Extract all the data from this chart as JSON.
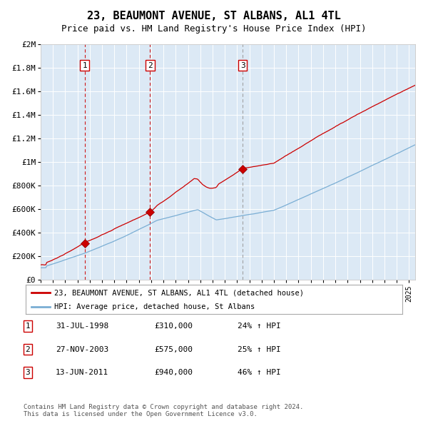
{
  "title": "23, BEAUMONT AVENUE, ST ALBANS, AL1 4TL",
  "subtitle": "Price paid vs. HM Land Registry's House Price Index (HPI)",
  "title_fontsize": 11,
  "subtitle_fontsize": 9,
  "background_color": "#ffffff",
  "plot_bg_color": "#dce9f5",
  "grid_color": "#ffffff",
  "ylim": [
    0,
    2000000
  ],
  "yticks": [
    0,
    200000,
    400000,
    600000,
    800000,
    1000000,
    1200000,
    1400000,
    1600000,
    1800000,
    2000000
  ],
  "ytick_labels": [
    "£0",
    "£200K",
    "£400K",
    "£600K",
    "£800K",
    "£1M",
    "£1.2M",
    "£1.4M",
    "£1.6M",
    "£1.8M",
    "£2M"
  ],
  "sale_dates": [
    1998.58,
    2003.91,
    2011.45
  ],
  "sale_prices": [
    310000,
    575000,
    940000
  ],
  "sale_labels": [
    "1",
    "2",
    "3"
  ],
  "vline_colors": [
    "#cc0000",
    "#cc0000",
    "#999999"
  ],
  "red_line_color": "#cc0000",
  "blue_line_color": "#7aaed4",
  "sale_marker_color": "#cc0000",
  "legend_labels": [
    "23, BEAUMONT AVENUE, ST ALBANS, AL1 4TL (detached house)",
    "HPI: Average price, detached house, St Albans"
  ],
  "table_rows": [
    [
      "1",
      "31-JUL-1998",
      "£310,000",
      "24% ↑ HPI"
    ],
    [
      "2",
      "27-NOV-2003",
      "£575,000",
      "25% ↑ HPI"
    ],
    [
      "3",
      "13-JUN-2011",
      "£940,000",
      "46% ↑ HPI"
    ]
  ],
  "footnote": "Contains HM Land Registry data © Crown copyright and database right 2024.\nThis data is licensed under the Open Government Licence v3.0.",
  "xstart": 1995,
  "xend": 2025.5
}
